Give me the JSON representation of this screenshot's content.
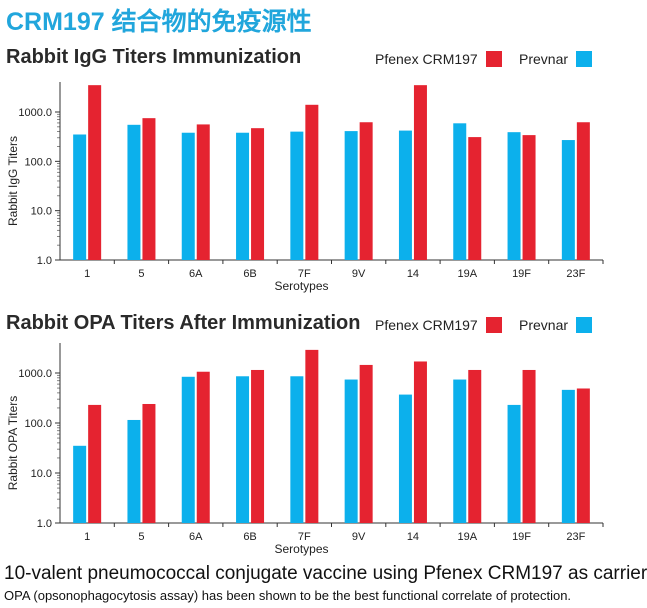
{
  "heading": "CRM197 结合物的免疫源性",
  "colors": {
    "heading": "#21a6dc",
    "pfenex": "#e52330",
    "prevnar": "#0cb0ec"
  },
  "footer": {
    "main": "10-valent pneumococcal conjugate vaccine using Pfenex CRM197 as carrier",
    "sub": "OPA (opsonophagocytosis assay) has been shown to be the best functional correlate of protection."
  },
  "chart_data": [
    {
      "type": "bar",
      "title": "Rabbit IgG Titers Immunization",
      "xlabel": "Serotypes",
      "ylabel": "Rabbit IgG Titers",
      "yscale": "log",
      "ylim": [
        1,
        3000
      ],
      "yticks": [
        "1000.0",
        "100.0",
        "10.0",
        "1.0"
      ],
      "categories": [
        "1",
        "5",
        "6A",
        "6B",
        "7F",
        "9V",
        "14",
        "19A",
        "19F",
        "23F"
      ],
      "legend_position": "top-right",
      "series": [
        {
          "name": "Prevnar",
          "values": [
            350,
            550,
            380,
            380,
            400,
            410,
            420,
            590,
            390,
            270
          ]
        },
        {
          "name": "Pfenex CRM197",
          "values": [
            3500,
            750,
            560,
            470,
            1400,
            620,
            3500,
            310,
            340,
            620
          ]
        }
      ]
    },
    {
      "type": "bar",
      "title": "Rabbit OPA Titers After Immunization",
      "xlabel": "Serotypes",
      "ylabel": "Rabbit OPA Titers",
      "yscale": "log",
      "ylim": [
        1,
        3000
      ],
      "yticks": [
        "1000.0",
        "100.0",
        "10.0",
        "1.0"
      ],
      "categories": [
        "1",
        "5",
        "6A",
        "6B",
        "7F",
        "9V",
        "14",
        "19A",
        "19F",
        "23F"
      ],
      "legend_position": "top-right",
      "series": [
        {
          "name": "Prevnar",
          "values": [
            35,
            115,
            840,
            860,
            860,
            740,
            370,
            740,
            230,
            460
          ]
        },
        {
          "name": "Pfenex CRM197",
          "values": [
            230,
            240,
            1060,
            1150,
            2900,
            1450,
            1700,
            1150,
            1150,
            490
          ]
        }
      ]
    }
  ]
}
